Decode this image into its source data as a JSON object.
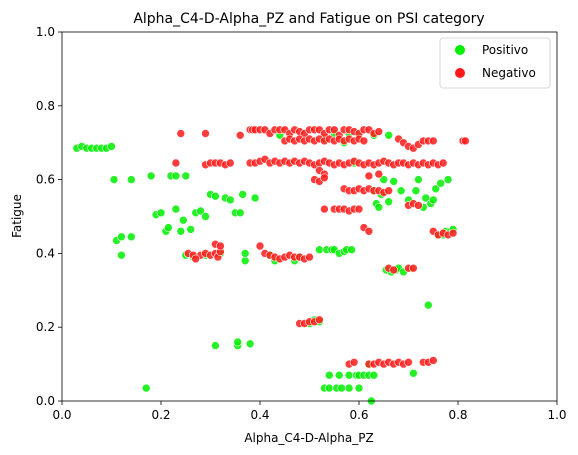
{
  "chart_data": {
    "type": "scatter",
    "title": "Alpha_C4-D-Alpha_PZ and Fatigue on PSI category",
    "xlabel": "Alpha_C4-D-Alpha_PZ",
    "ylabel": "Fatigue",
    "xlim": [
      0,
      1
    ],
    "ylim": [
      0,
      1
    ],
    "xticks": [
      "0.0",
      "0.2",
      "0.4",
      "0.6",
      "0.8",
      "1.0"
    ],
    "yticks": [
      "0.0",
      "0.2",
      "0.4",
      "0.6",
      "0.8",
      "1.0"
    ],
    "grid": false,
    "legend_position": "top-right",
    "series": [
      {
        "name": "Positivo",
        "color": "#00ee00",
        "points": [
          [
            0.03,
            0.685
          ],
          [
            0.04,
            0.69
          ],
          [
            0.05,
            0.685
          ],
          [
            0.06,
            0.685
          ],
          [
            0.07,
            0.685
          ],
          [
            0.08,
            0.685
          ],
          [
            0.09,
            0.685
          ],
          [
            0.1,
            0.69
          ],
          [
            0.105,
            0.6
          ],
          [
            0.11,
            0.435
          ],
          [
            0.12,
            0.445
          ],
          [
            0.12,
            0.395
          ],
          [
            0.14,
            0.445
          ],
          [
            0.14,
            0.6
          ],
          [
            0.17,
            0.035
          ],
          [
            0.18,
            0.61
          ],
          [
            0.19,
            0.505
          ],
          [
            0.2,
            0.51
          ],
          [
            0.21,
            0.46
          ],
          [
            0.215,
            0.47
          ],
          [
            0.22,
            0.61
          ],
          [
            0.23,
            0.61
          ],
          [
            0.23,
            0.52
          ],
          [
            0.24,
            0.46
          ],
          [
            0.245,
            0.49
          ],
          [
            0.25,
            0.61
          ],
          [
            0.25,
            0.395
          ],
          [
            0.26,
            0.465
          ],
          [
            0.265,
            0.39
          ],
          [
            0.27,
            0.51
          ],
          [
            0.28,
            0.515
          ],
          [
            0.29,
            0.5
          ],
          [
            0.29,
            0.395
          ],
          [
            0.3,
            0.56
          ],
          [
            0.31,
            0.15
          ],
          [
            0.31,
            0.555
          ],
          [
            0.32,
            0.4
          ],
          [
            0.33,
            0.55
          ],
          [
            0.34,
            0.545
          ],
          [
            0.35,
            0.51
          ],
          [
            0.355,
            0.15
          ],
          [
            0.355,
            0.16
          ],
          [
            0.36,
            0.51
          ],
          [
            0.365,
            0.56
          ],
          [
            0.37,
            0.38
          ],
          [
            0.37,
            0.4
          ],
          [
            0.38,
            0.155
          ],
          [
            0.39,
            0.55
          ],
          [
            0.42,
            0.395
          ],
          [
            0.43,
            0.38
          ],
          [
            0.47,
            0.38
          ],
          [
            0.48,
            0.39
          ],
          [
            0.5,
            0.21
          ],
          [
            0.51,
            0.22
          ],
          [
            0.52,
            0.215
          ],
          [
            0.52,
            0.41
          ],
          [
            0.53,
            0.035
          ],
          [
            0.535,
            0.41
          ],
          [
            0.54,
            0.07
          ],
          [
            0.54,
            0.035
          ],
          [
            0.545,
            0.41
          ],
          [
            0.55,
            0.41
          ],
          [
            0.555,
            0.035
          ],
          [
            0.56,
            0.07
          ],
          [
            0.56,
            0.4
          ],
          [
            0.565,
            0.035
          ],
          [
            0.57,
            0.405
          ],
          [
            0.575,
            0.41
          ],
          [
            0.58,
            0.07
          ],
          [
            0.58,
            0.035
          ],
          [
            0.585,
            0.41
          ],
          [
            0.59,
            0.645
          ],
          [
            0.595,
            0.07
          ],
          [
            0.6,
            0.07
          ],
          [
            0.6,
            0.035
          ],
          [
            0.61,
            0.07
          ],
          [
            0.62,
            0.07
          ],
          [
            0.62,
            0.1
          ],
          [
            0.625,
            0.0
          ],
          [
            0.63,
            0.07
          ],
          [
            0.63,
            0.57
          ],
          [
            0.635,
            0.535
          ],
          [
            0.64,
            0.525
          ],
          [
            0.645,
            0.56
          ],
          [
            0.65,
            0.6
          ],
          [
            0.655,
            0.355
          ],
          [
            0.66,
            0.54
          ],
          [
            0.665,
            0.35
          ],
          [
            0.67,
            0.595
          ],
          [
            0.675,
            0.355
          ],
          [
            0.68,
            0.36
          ],
          [
            0.685,
            0.57
          ],
          [
            0.69,
            0.35
          ],
          [
            0.7,
            0.545
          ],
          [
            0.705,
            0.36
          ],
          [
            0.71,
            0.075
          ],
          [
            0.715,
            0.57
          ],
          [
            0.72,
            0.6
          ],
          [
            0.73,
            0.525
          ],
          [
            0.735,
            0.55
          ],
          [
            0.74,
            0.26
          ],
          [
            0.745,
            0.535
          ],
          [
            0.75,
            0.545
          ],
          [
            0.755,
            0.575
          ],
          [
            0.76,
            0.45
          ],
          [
            0.765,
            0.59
          ],
          [
            0.77,
            0.45
          ],
          [
            0.775,
            0.46
          ],
          [
            0.78,
            0.6
          ],
          [
            0.785,
            0.46
          ],
          [
            0.79,
            0.465
          ],
          [
            0.53,
            0.71
          ],
          [
            0.55,
            0.725
          ],
          [
            0.57,
            0.7
          ],
          [
            0.58,
            0.725
          ],
          [
            0.6,
            0.72
          ],
          [
            0.44,
            0.72
          ],
          [
            0.63,
            0.72
          ],
          [
            0.66,
            0.72
          ]
        ]
      },
      {
        "name": "Negativo",
        "color": "#ff1a1a",
        "points": [
          [
            0.24,
            0.725
          ],
          [
            0.29,
            0.725
          ],
          [
            0.36,
            0.72
          ],
          [
            0.38,
            0.735
          ],
          [
            0.385,
            0.735
          ],
          [
            0.39,
            0.735
          ],
          [
            0.4,
            0.735
          ],
          [
            0.41,
            0.735
          ],
          [
            0.42,
            0.725
          ],
          [
            0.43,
            0.735
          ],
          [
            0.44,
            0.735
          ],
          [
            0.45,
            0.735
          ],
          [
            0.46,
            0.725
          ],
          [
            0.47,
            0.735
          ],
          [
            0.48,
            0.73
          ],
          [
            0.49,
            0.725
          ],
          [
            0.5,
            0.735
          ],
          [
            0.51,
            0.735
          ],
          [
            0.52,
            0.735
          ],
          [
            0.53,
            0.725
          ],
          [
            0.54,
            0.735
          ],
          [
            0.55,
            0.735
          ],
          [
            0.56,
            0.72
          ],
          [
            0.57,
            0.735
          ],
          [
            0.58,
            0.735
          ],
          [
            0.59,
            0.73
          ],
          [
            0.6,
            0.725
          ],
          [
            0.61,
            0.735
          ],
          [
            0.62,
            0.735
          ],
          [
            0.63,
            0.725
          ],
          [
            0.64,
            0.73
          ],
          [
            0.45,
            0.705
          ],
          [
            0.46,
            0.71
          ],
          [
            0.47,
            0.705
          ],
          [
            0.48,
            0.71
          ],
          [
            0.49,
            0.705
          ],
          [
            0.5,
            0.71
          ],
          [
            0.51,
            0.705
          ],
          [
            0.52,
            0.71
          ],
          [
            0.53,
            0.705
          ],
          [
            0.54,
            0.71
          ],
          [
            0.55,
            0.705
          ],
          [
            0.56,
            0.71
          ],
          [
            0.57,
            0.705
          ],
          [
            0.58,
            0.71
          ],
          [
            0.59,
            0.705
          ],
          [
            0.6,
            0.71
          ],
          [
            0.61,
            0.705
          ],
          [
            0.68,
            0.71
          ],
          [
            0.69,
            0.7
          ],
          [
            0.7,
            0.69
          ],
          [
            0.71,
            0.685
          ],
          [
            0.72,
            0.695
          ],
          [
            0.73,
            0.705
          ],
          [
            0.74,
            0.705
          ],
          [
            0.75,
            0.705
          ],
          [
            0.81,
            0.705
          ],
          [
            0.815,
            0.705
          ],
          [
            0.23,
            0.645
          ],
          [
            0.29,
            0.64
          ],
          [
            0.3,
            0.645
          ],
          [
            0.31,
            0.645
          ],
          [
            0.32,
            0.645
          ],
          [
            0.33,
            0.64
          ],
          [
            0.34,
            0.645
          ],
          [
            0.38,
            0.645
          ],
          [
            0.39,
            0.645
          ],
          [
            0.4,
            0.65
          ],
          [
            0.41,
            0.655
          ],
          [
            0.42,
            0.645
          ],
          [
            0.43,
            0.65
          ],
          [
            0.44,
            0.645
          ],
          [
            0.45,
            0.65
          ],
          [
            0.46,
            0.645
          ],
          [
            0.47,
            0.65
          ],
          [
            0.48,
            0.645
          ],
          [
            0.49,
            0.65
          ],
          [
            0.5,
            0.645
          ],
          [
            0.51,
            0.64
          ],
          [
            0.52,
            0.645
          ],
          [
            0.53,
            0.65
          ],
          [
            0.54,
            0.645
          ],
          [
            0.55,
            0.64
          ],
          [
            0.56,
            0.645
          ],
          [
            0.57,
            0.64
          ],
          [
            0.58,
            0.645
          ],
          [
            0.59,
            0.65
          ],
          [
            0.6,
            0.645
          ],
          [
            0.61,
            0.64
          ],
          [
            0.62,
            0.645
          ],
          [
            0.63,
            0.64
          ],
          [
            0.64,
            0.645
          ],
          [
            0.65,
            0.65
          ],
          [
            0.66,
            0.645
          ],
          [
            0.67,
            0.64
          ],
          [
            0.68,
            0.645
          ],
          [
            0.69,
            0.645
          ],
          [
            0.7,
            0.64
          ],
          [
            0.71,
            0.645
          ],
          [
            0.72,
            0.64
          ],
          [
            0.73,
            0.645
          ],
          [
            0.74,
            0.64
          ],
          [
            0.75,
            0.645
          ],
          [
            0.76,
            0.64
          ],
          [
            0.77,
            0.645
          ],
          [
            0.52,
            0.625
          ],
          [
            0.53,
            0.615
          ],
          [
            0.51,
            0.6
          ],
          [
            0.52,
            0.595
          ],
          [
            0.53,
            0.605
          ],
          [
            0.57,
            0.575
          ],
          [
            0.58,
            0.57
          ],
          [
            0.59,
            0.57
          ],
          [
            0.6,
            0.575
          ],
          [
            0.61,
            0.57
          ],
          [
            0.62,
            0.575
          ],
          [
            0.63,
            0.57
          ],
          [
            0.64,
            0.57
          ],
          [
            0.65,
            0.565
          ],
          [
            0.66,
            0.57
          ],
          [
            0.62,
            0.61
          ],
          [
            0.64,
            0.615
          ],
          [
            0.7,
            0.53
          ],
          [
            0.71,
            0.535
          ],
          [
            0.72,
            0.53
          ],
          [
            0.53,
            0.52
          ],
          [
            0.55,
            0.52
          ],
          [
            0.56,
            0.52
          ],
          [
            0.57,
            0.52
          ],
          [
            0.58,
            0.515
          ],
          [
            0.59,
            0.52
          ],
          [
            0.6,
            0.52
          ],
          [
            0.61,
            0.47
          ],
          [
            0.62,
            0.46
          ],
          [
            0.4,
            0.42
          ],
          [
            0.41,
            0.4
          ],
          [
            0.42,
            0.395
          ],
          [
            0.43,
            0.39
          ],
          [
            0.44,
            0.385
          ],
          [
            0.45,
            0.39
          ],
          [
            0.46,
            0.395
          ],
          [
            0.47,
            0.39
          ],
          [
            0.48,
            0.39
          ],
          [
            0.49,
            0.385
          ],
          [
            0.5,
            0.39
          ],
          [
            0.28,
            0.395
          ],
          [
            0.29,
            0.4
          ],
          [
            0.3,
            0.395
          ],
          [
            0.31,
            0.4
          ],
          [
            0.315,
            0.39
          ],
          [
            0.32,
            0.405
          ],
          [
            0.31,
            0.425
          ],
          [
            0.32,
            0.42
          ],
          [
            0.255,
            0.4
          ],
          [
            0.265,
            0.395
          ],
          [
            0.27,
            0.385
          ],
          [
            0.66,
            0.36
          ],
          [
            0.67,
            0.355
          ],
          [
            0.7,
            0.36
          ],
          [
            0.71,
            0.36
          ],
          [
            0.75,
            0.46
          ],
          [
            0.76,
            0.45
          ],
          [
            0.77,
            0.455
          ],
          [
            0.78,
            0.45
          ],
          [
            0.79,
            0.455
          ],
          [
            0.48,
            0.21
          ],
          [
            0.49,
            0.21
          ],
          [
            0.5,
            0.215
          ],
          [
            0.51,
            0.215
          ],
          [
            0.52,
            0.22
          ],
          [
            0.58,
            0.1
          ],
          [
            0.59,
            0.105
          ],
          [
            0.62,
            0.1
          ],
          [
            0.63,
            0.1
          ],
          [
            0.64,
            0.105
          ],
          [
            0.65,
            0.1
          ],
          [
            0.66,
            0.105
          ],
          [
            0.67,
            0.1
          ],
          [
            0.68,
            0.105
          ],
          [
            0.69,
            0.1
          ],
          [
            0.7,
            0.105
          ],
          [
            0.73,
            0.105
          ],
          [
            0.74,
            0.105
          ],
          [
            0.75,
            0.11
          ]
        ]
      }
    ]
  }
}
